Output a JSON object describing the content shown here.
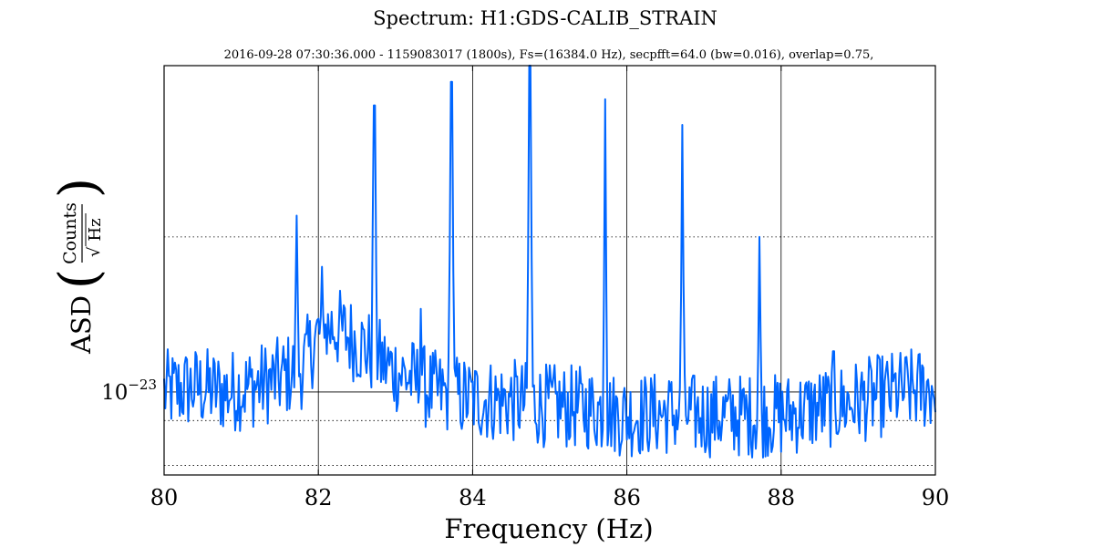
{
  "chart_data": {
    "type": "line",
    "title": "Spectrum: H1:GDS-CALIB_STRAIN",
    "subtitle": "2016-09-28 07:30:36.000 - 1159083017 (1800s), Fs=(16384.0 Hz), secpfft=64.0 (bw=0.016), overlap=0.75,",
    "xlabel": "Frequency (Hz)",
    "ylabel_prefix": "ASD",
    "ylabel_num": "Counts",
    "ylabel_den": "Hz",
    "yscale": "log",
    "xlim": [
      80,
      90
    ],
    "ylim": [
      6.9e-24,
      4.3e-23
    ],
    "xticks": [
      {
        "value": 80,
        "label": "80"
      },
      {
        "value": 82,
        "label": "82"
      },
      {
        "value": 84,
        "label": "84"
      },
      {
        "value": 86,
        "label": "86"
      },
      {
        "value": 88,
        "label": "88"
      },
      {
        "value": 90,
        "label": "90"
      }
    ],
    "yticks": [
      {
        "value": 1e-23,
        "base": "10",
        "exp": "−23"
      }
    ],
    "ygrid_minor": [
      7.2e-24,
      8.8e-24,
      2e-23
    ],
    "grid": true,
    "line_color": "#0066ff",
    "series": [
      {
        "baseline": [
          [
            80.0,
            1e-23
          ],
          [
            80.4,
            1.02e-23
          ],
          [
            80.8,
            1e-23
          ],
          [
            81.2,
            1.03e-23
          ],
          [
            81.5,
            1.06e-23
          ],
          [
            81.8,
            1.12e-23
          ],
          [
            82.0,
            1.3e-23
          ],
          [
            82.2,
            1.34e-23
          ],
          [
            82.4,
            1.28e-23
          ],
          [
            82.6,
            1.22e-23
          ],
          [
            82.9,
            1.12e-23
          ],
          [
            83.2,
            1.06e-23
          ],
          [
            83.5,
            1e-23
          ],
          [
            84.0,
            9.7e-24
          ],
          [
            84.5,
            9.6e-24
          ],
          [
            85.0,
            9.4e-24
          ],
          [
            85.5,
            9.3e-24
          ],
          [
            86.0,
            9e-24
          ],
          [
            86.5,
            9.1e-24
          ],
          [
            87.0,
            9e-24
          ],
          [
            87.5,
            9e-24
          ],
          [
            88.0,
            9e-24
          ],
          [
            88.5,
            9.3e-24
          ],
          [
            89.0,
            9.6e-24
          ],
          [
            89.5,
            1e-23
          ],
          [
            90.0,
            1.02e-23
          ]
        ],
        "peaks": [
          [
            81.72,
            2.2e-23
          ],
          [
            82.73,
            3.6e-23
          ],
          [
            83.73,
            4e-23
          ],
          [
            84.74,
            4.3e-23
          ],
          [
            85.72,
            3.7e-23
          ],
          [
            86.72,
            3.3e-23
          ],
          [
            87.72,
            2e-23
          ],
          [
            88.68,
            1.2e-23
          ],
          [
            83.33,
            1.45e-23
          ],
          [
            82.05,
            1.75e-23
          ]
        ]
      }
    ]
  }
}
